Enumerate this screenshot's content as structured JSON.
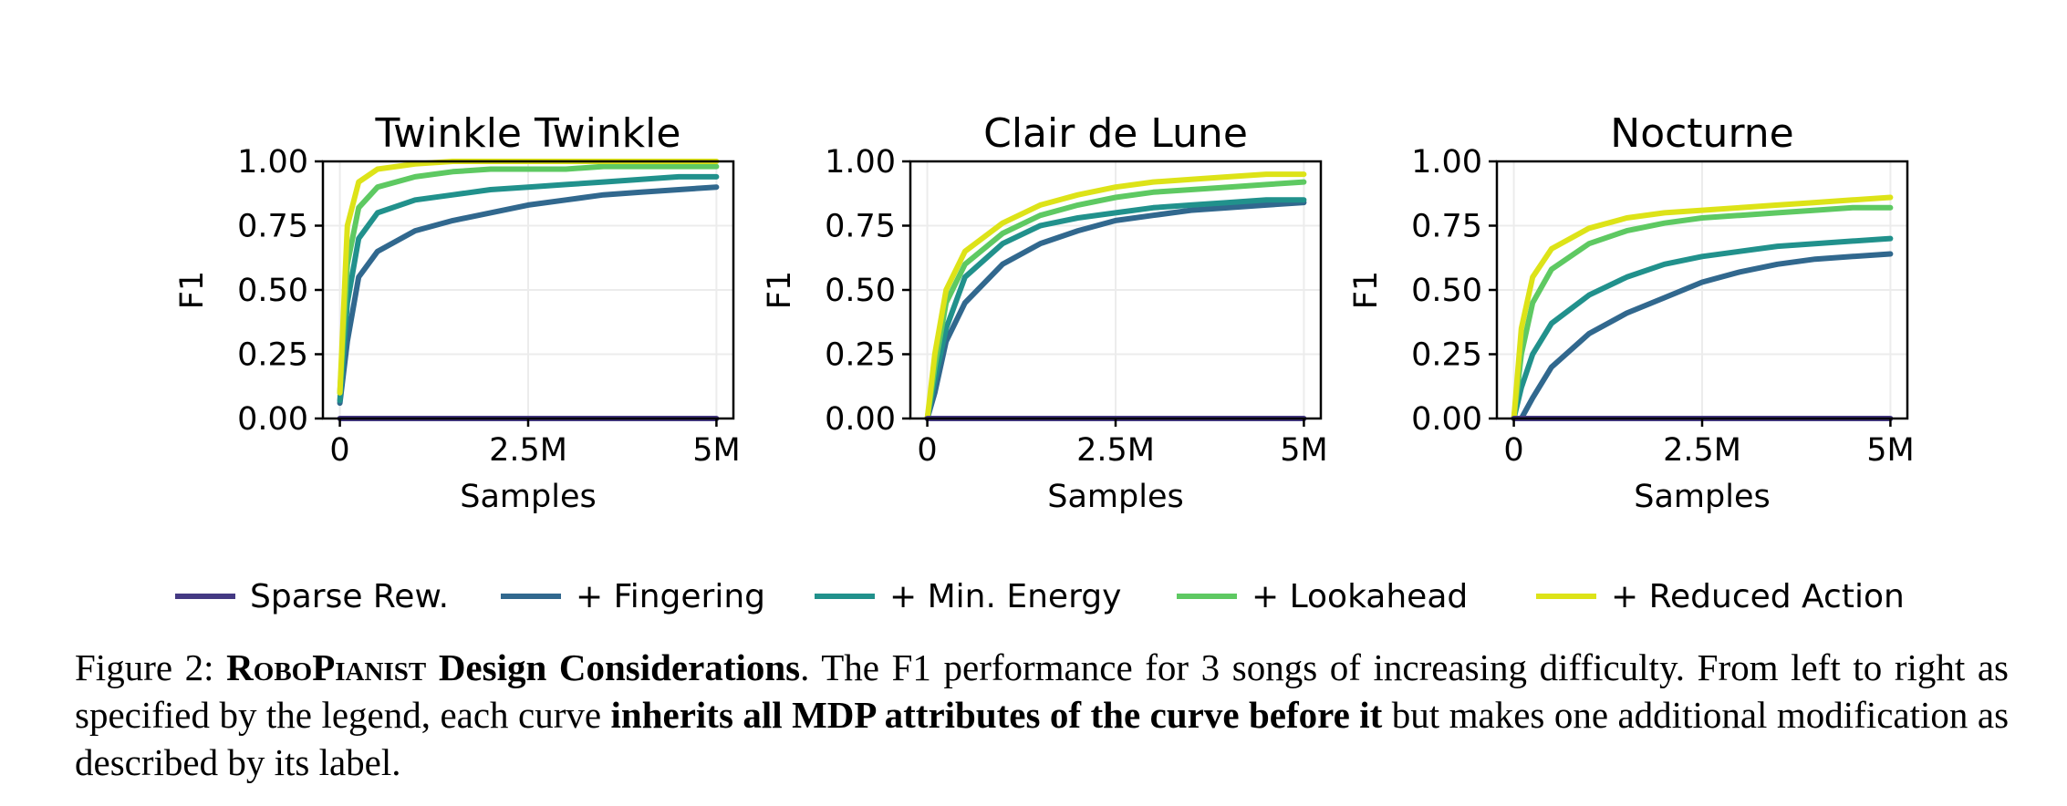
{
  "colors": {
    "sparse": "#443983",
    "fingering": "#31688e",
    "min_energy": "#21918c",
    "lookahead": "#5ec962",
    "reduced_action": "#dde318"
  },
  "chart_data": [
    {
      "type": "line",
      "title": "Twinkle Twinkle",
      "xlabel": "Samples",
      "ylabel": "F1",
      "xlim": [
        0,
        5000000
      ],
      "ylim": [
        0,
        1
      ],
      "xticks": [
        "0",
        "2.5M",
        "5M"
      ],
      "yticks": [
        "0.00",
        "0.25",
        "0.50",
        "0.75",
        "1.00"
      ],
      "grid": true,
      "series": [
        {
          "name": "Sparse Rew.",
          "x": [
            0,
            5000000
          ],
          "y": [
            0.0,
            0.0
          ]
        },
        {
          "name": "+ Fingering",
          "x": [
            0,
            100000,
            250000,
            500000,
            1000000,
            1500000,
            2000000,
            2500000,
            3000000,
            3500000,
            4000000,
            4500000,
            5000000
          ],
          "y": [
            0.06,
            0.3,
            0.55,
            0.65,
            0.73,
            0.77,
            0.8,
            0.83,
            0.85,
            0.87,
            0.88,
            0.89,
            0.9
          ]
        },
        {
          "name": "+ Min. Energy",
          "x": [
            0,
            100000,
            250000,
            500000,
            1000000,
            1500000,
            2000000,
            2500000,
            3000000,
            3500000,
            4000000,
            4500000,
            5000000
          ],
          "y": [
            0.07,
            0.45,
            0.7,
            0.8,
            0.85,
            0.87,
            0.89,
            0.9,
            0.91,
            0.92,
            0.93,
            0.94,
            0.94
          ]
        },
        {
          "name": "+ Lookahead",
          "x": [
            0,
            100000,
            250000,
            500000,
            1000000,
            1500000,
            2000000,
            2500000,
            3000000,
            3500000,
            4000000,
            4500000,
            5000000
          ],
          "y": [
            0.1,
            0.6,
            0.82,
            0.9,
            0.94,
            0.96,
            0.97,
            0.97,
            0.97,
            0.98,
            0.98,
            0.98,
            0.98
          ]
        },
        {
          "name": "+ Reduced Action",
          "x": [
            0,
            100000,
            250000,
            500000,
            1000000,
            1500000,
            2000000,
            2500000,
            3000000,
            3500000,
            4000000,
            4500000,
            5000000
          ],
          "y": [
            0.1,
            0.75,
            0.92,
            0.97,
            0.99,
            1.0,
            1.0,
            1.0,
            1.0,
            1.0,
            1.0,
            1.0,
            1.0
          ]
        }
      ]
    },
    {
      "type": "line",
      "title": "Clair de Lune",
      "xlabel": "Samples",
      "ylabel": "F1",
      "xlim": [
        0,
        5000000
      ],
      "ylim": [
        0,
        1
      ],
      "xticks": [
        "0",
        "2.5M",
        "5M"
      ],
      "yticks": [
        "0.00",
        "0.25",
        "0.50",
        "0.75",
        "1.00"
      ],
      "grid": true,
      "series": [
        {
          "name": "Sparse Rew.",
          "x": [
            0,
            5000000
          ],
          "y": [
            0.0,
            0.0
          ]
        },
        {
          "name": "+ Fingering",
          "x": [
            0,
            100000,
            250000,
            500000,
            1000000,
            1500000,
            2000000,
            2500000,
            3000000,
            3500000,
            4000000,
            4500000,
            5000000
          ],
          "y": [
            0.0,
            0.1,
            0.3,
            0.45,
            0.6,
            0.68,
            0.73,
            0.77,
            0.79,
            0.81,
            0.82,
            0.83,
            0.84
          ]
        },
        {
          "name": "+ Min. Energy",
          "x": [
            0,
            100000,
            250000,
            500000,
            1000000,
            1500000,
            2000000,
            2500000,
            3000000,
            3500000,
            4000000,
            4500000,
            5000000
          ],
          "y": [
            0.0,
            0.15,
            0.35,
            0.55,
            0.68,
            0.75,
            0.78,
            0.8,
            0.82,
            0.83,
            0.84,
            0.85,
            0.85
          ]
        },
        {
          "name": "+ Lookahead",
          "x": [
            0,
            100000,
            250000,
            500000,
            1000000,
            1500000,
            2000000,
            2500000,
            3000000,
            3500000,
            4000000,
            4500000,
            5000000
          ],
          "y": [
            0.0,
            0.2,
            0.45,
            0.6,
            0.72,
            0.79,
            0.83,
            0.86,
            0.88,
            0.89,
            0.9,
            0.91,
            0.92
          ]
        },
        {
          "name": "+ Reduced Action",
          "x": [
            0,
            100000,
            250000,
            500000,
            1000000,
            1500000,
            2000000,
            2500000,
            3000000,
            3500000,
            4000000,
            4500000,
            5000000
          ],
          "y": [
            0.0,
            0.25,
            0.5,
            0.65,
            0.76,
            0.83,
            0.87,
            0.9,
            0.92,
            0.93,
            0.94,
            0.95,
            0.95
          ]
        }
      ]
    },
    {
      "type": "line",
      "title": "Nocturne",
      "xlabel": "Samples",
      "ylabel": "F1",
      "xlim": [
        0,
        5000000
      ],
      "ylim": [
        0,
        1
      ],
      "xticks": [
        "0",
        "2.5M",
        "5M"
      ],
      "yticks": [
        "0.00",
        "0.25",
        "0.50",
        "0.75",
        "1.00"
      ],
      "grid": true,
      "series": [
        {
          "name": "Sparse Rew.",
          "x": [
            0,
            5000000
          ],
          "y": [
            0.0,
            0.0
          ]
        },
        {
          "name": "+ Fingering",
          "x": [
            0,
            100000,
            250000,
            500000,
            1000000,
            1500000,
            2000000,
            2500000,
            3000000,
            3500000,
            4000000,
            4500000,
            5000000
          ],
          "y": [
            0.0,
            0.0,
            0.08,
            0.2,
            0.33,
            0.41,
            0.47,
            0.53,
            0.57,
            0.6,
            0.62,
            0.63,
            0.64
          ]
        },
        {
          "name": "+ Min. Energy",
          "x": [
            0,
            100000,
            250000,
            500000,
            1000000,
            1500000,
            2000000,
            2500000,
            3000000,
            3500000,
            4000000,
            4500000,
            5000000
          ],
          "y": [
            0.0,
            0.12,
            0.25,
            0.37,
            0.48,
            0.55,
            0.6,
            0.63,
            0.65,
            0.67,
            0.68,
            0.69,
            0.7
          ]
        },
        {
          "name": "+ Lookahead",
          "x": [
            0,
            100000,
            250000,
            500000,
            1000000,
            1500000,
            2000000,
            2500000,
            3000000,
            3500000,
            4000000,
            4500000,
            5000000
          ],
          "y": [
            0.0,
            0.25,
            0.45,
            0.58,
            0.68,
            0.73,
            0.76,
            0.78,
            0.79,
            0.8,
            0.81,
            0.82,
            0.82
          ]
        },
        {
          "name": "+ Reduced Action",
          "x": [
            0,
            100000,
            250000,
            500000,
            1000000,
            1500000,
            2000000,
            2500000,
            3000000,
            3500000,
            4000000,
            4500000,
            5000000
          ],
          "y": [
            0.0,
            0.35,
            0.55,
            0.66,
            0.74,
            0.78,
            0.8,
            0.81,
            0.82,
            0.83,
            0.84,
            0.85,
            0.86
          ]
        }
      ]
    }
  ],
  "legend": [
    {
      "label": "Sparse Rew.",
      "color": "#443983"
    },
    {
      "label": "+ Fingering",
      "color": "#31688e"
    },
    {
      "label": "+ Min. Energy",
      "color": "#21918c"
    },
    {
      "label": "+ Lookahead",
      "color": "#5ec962"
    },
    {
      "label": "+ Reduced Action",
      "color": "#dde318"
    }
  ],
  "caption": {
    "fig_label": "Figure 2:",
    "title": "RoboPianist",
    "title_rest": "Design Considerations",
    "text1": ". The F1 performance for 3 songs of increasing difficulty. From left to right as specified by the legend, each curve",
    "bold_phrase": "inherits all MDP attributes of the curve before it",
    "text2": "but makes one additional modification as described by its label."
  }
}
